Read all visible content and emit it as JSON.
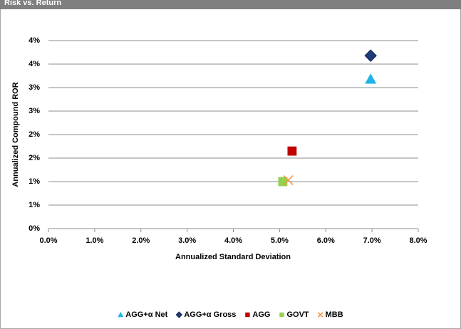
{
  "chart_data": {
    "type": "scatter",
    "title": "Risk vs. Return",
    "x_label": "Annualized Standard Deviation",
    "y_label": "Annualized Compound ROR",
    "xlim": [
      0,
      8
    ],
    "ylim": [
      0,
      4
    ],
    "xticks": [
      {
        "value": 0,
        "label": "0.0%"
      },
      {
        "value": 1,
        "label": "1.0%"
      },
      {
        "value": 2,
        "label": "2.0%"
      },
      {
        "value": 3,
        "label": "3.0%"
      },
      {
        "value": 4,
        "label": "4.0%"
      },
      {
        "value": 5,
        "label": "5.0%"
      },
      {
        "value": 6,
        "label": "6.0%"
      },
      {
        "value": 7,
        "label": "7.0%"
      },
      {
        "value": 8,
        "label": "8.0%"
      }
    ],
    "yticks": [
      {
        "value": 0,
        "label": "0%"
      },
      {
        "value": 0.5,
        "label": "1%"
      },
      {
        "value": 1,
        "label": "1%"
      },
      {
        "value": 1.5,
        "label": "2%"
      },
      {
        "value": 2,
        "label": "2%"
      },
      {
        "value": 2.5,
        "label": "3%"
      },
      {
        "value": 3,
        "label": "3%"
      },
      {
        "value": 3.5,
        "label": "4%"
      },
      {
        "value": 4,
        "label": "4%"
      }
    ],
    "grid": true,
    "legend": "bottom",
    "series": [
      {
        "name": "AGG+α Net",
        "color": "#1fb3e8",
        "marker": "triangle",
        "x": [
          6.97
        ],
        "values": [
          3.18
        ]
      },
      {
        "name": "AGG+α Gross",
        "color": "#1f3d7a",
        "marker": "diamond",
        "x": [
          6.97
        ],
        "values": [
          3.68
        ]
      },
      {
        "name": "AGG",
        "color": "#c00000",
        "marker": "square",
        "x": [
          5.27
        ],
        "values": [
          1.65
        ]
      },
      {
        "name": "GOVT",
        "color": "#92d050",
        "marker": "square",
        "x": [
          5.07
        ],
        "values": [
          1.0
        ]
      },
      {
        "name": "MBB",
        "color": "#f79646",
        "marker": "x",
        "x": [
          5.19
        ],
        "values": [
          1.03
        ]
      }
    ]
  }
}
